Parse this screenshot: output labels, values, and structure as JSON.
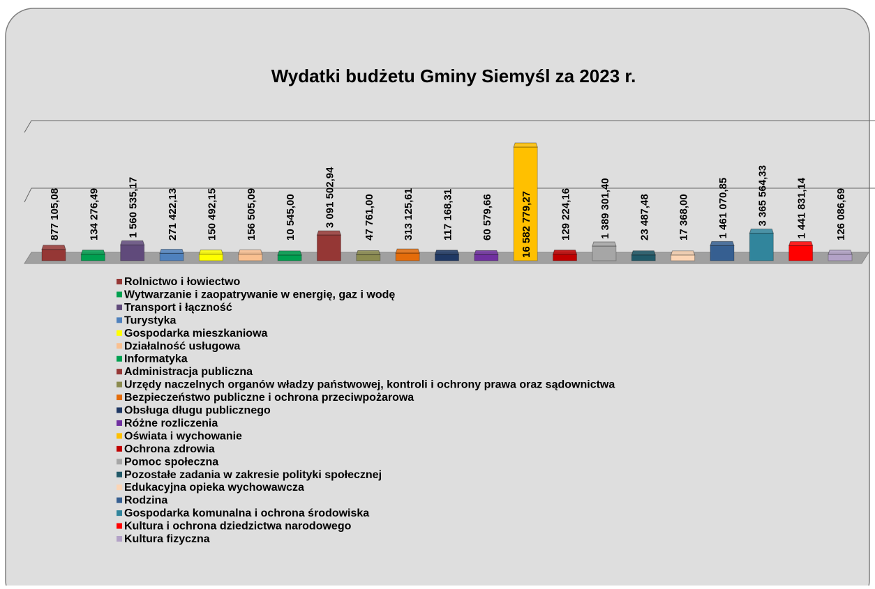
{
  "chart_data": {
    "type": "bar3d",
    "title": "Wydatki budżetu Gminy Siemyśl za 2023 r.",
    "categories": [
      "Rolnictwo i łowiectwo",
      "Wytwarzanie i zaopatrywanie w energię, gaz i wodę",
      "Transport i łączność",
      "Turystyka",
      "Gospodarka mieszkaniowa",
      "Działalność usługowa",
      "Informatyka",
      "Administracja publiczna",
      "Urzędy naczelnych organów władzy państwowej, kontroli i ochrony prawa oraz sądownictwa",
      "Bezpieczeństwo publiczne i ochrona przeciwpożarowa",
      "Obsługa długu publicznego",
      "Różne rozliczenia",
      "Oświata i wychowanie",
      "Ochrona zdrowia",
      "Pomoc społeczna",
      "Pozostałe zadania w zakresie polityki społecznej",
      "Edukacyjna opieka wychowawcza",
      "Rodzina",
      "Gospodarka komunalna i ochrona środowiska",
      "Kultura i ochrona dziedzictwa narodowego",
      "Kultura fizyczna"
    ],
    "values": [
      877105.08,
      134276.49,
      1560535.17,
      271422.13,
      150492.15,
      156505.09,
      10545.0,
      3091502.94,
      47761.0,
      313125.61,
      117168.31,
      60579.66,
      16582779.27,
      129224.16,
      1389301.4,
      23487.48,
      17368.0,
      1461070.85,
      3365564.33,
      1441831.14,
      126086.69
    ],
    "value_labels": [
      "877 105,08",
      "134 276,49",
      "1 560 535,17",
      "271 422,13",
      "150 492,15",
      "156 505,09",
      "10 545,00",
      "3 091 502,94",
      "47 761,00",
      "313 125,61",
      "117 168,31",
      "60 579,66",
      "16 582 779,27",
      "129 224,16",
      "1 389 301,40",
      "23 487,48",
      "17 368,00",
      "1 461 070,85",
      "3 365 564,33",
      "1 441 831,14",
      "126 086,69"
    ],
    "colors": [
      "#953735",
      "#00a050",
      "#604a7b",
      "#4f81bd",
      "#ffff00",
      "#fac090",
      "#00a050",
      "#953735",
      "#8b8b4f",
      "#e46c0a",
      "#1f3864",
      "#7030a0",
      "#ffc000",
      "#c00000",
      "#a6a6a6",
      "#215968",
      "#fcd5b5",
      "#365f91",
      "#31859c",
      "#ff0000",
      "#b3a2c7"
    ]
  }
}
